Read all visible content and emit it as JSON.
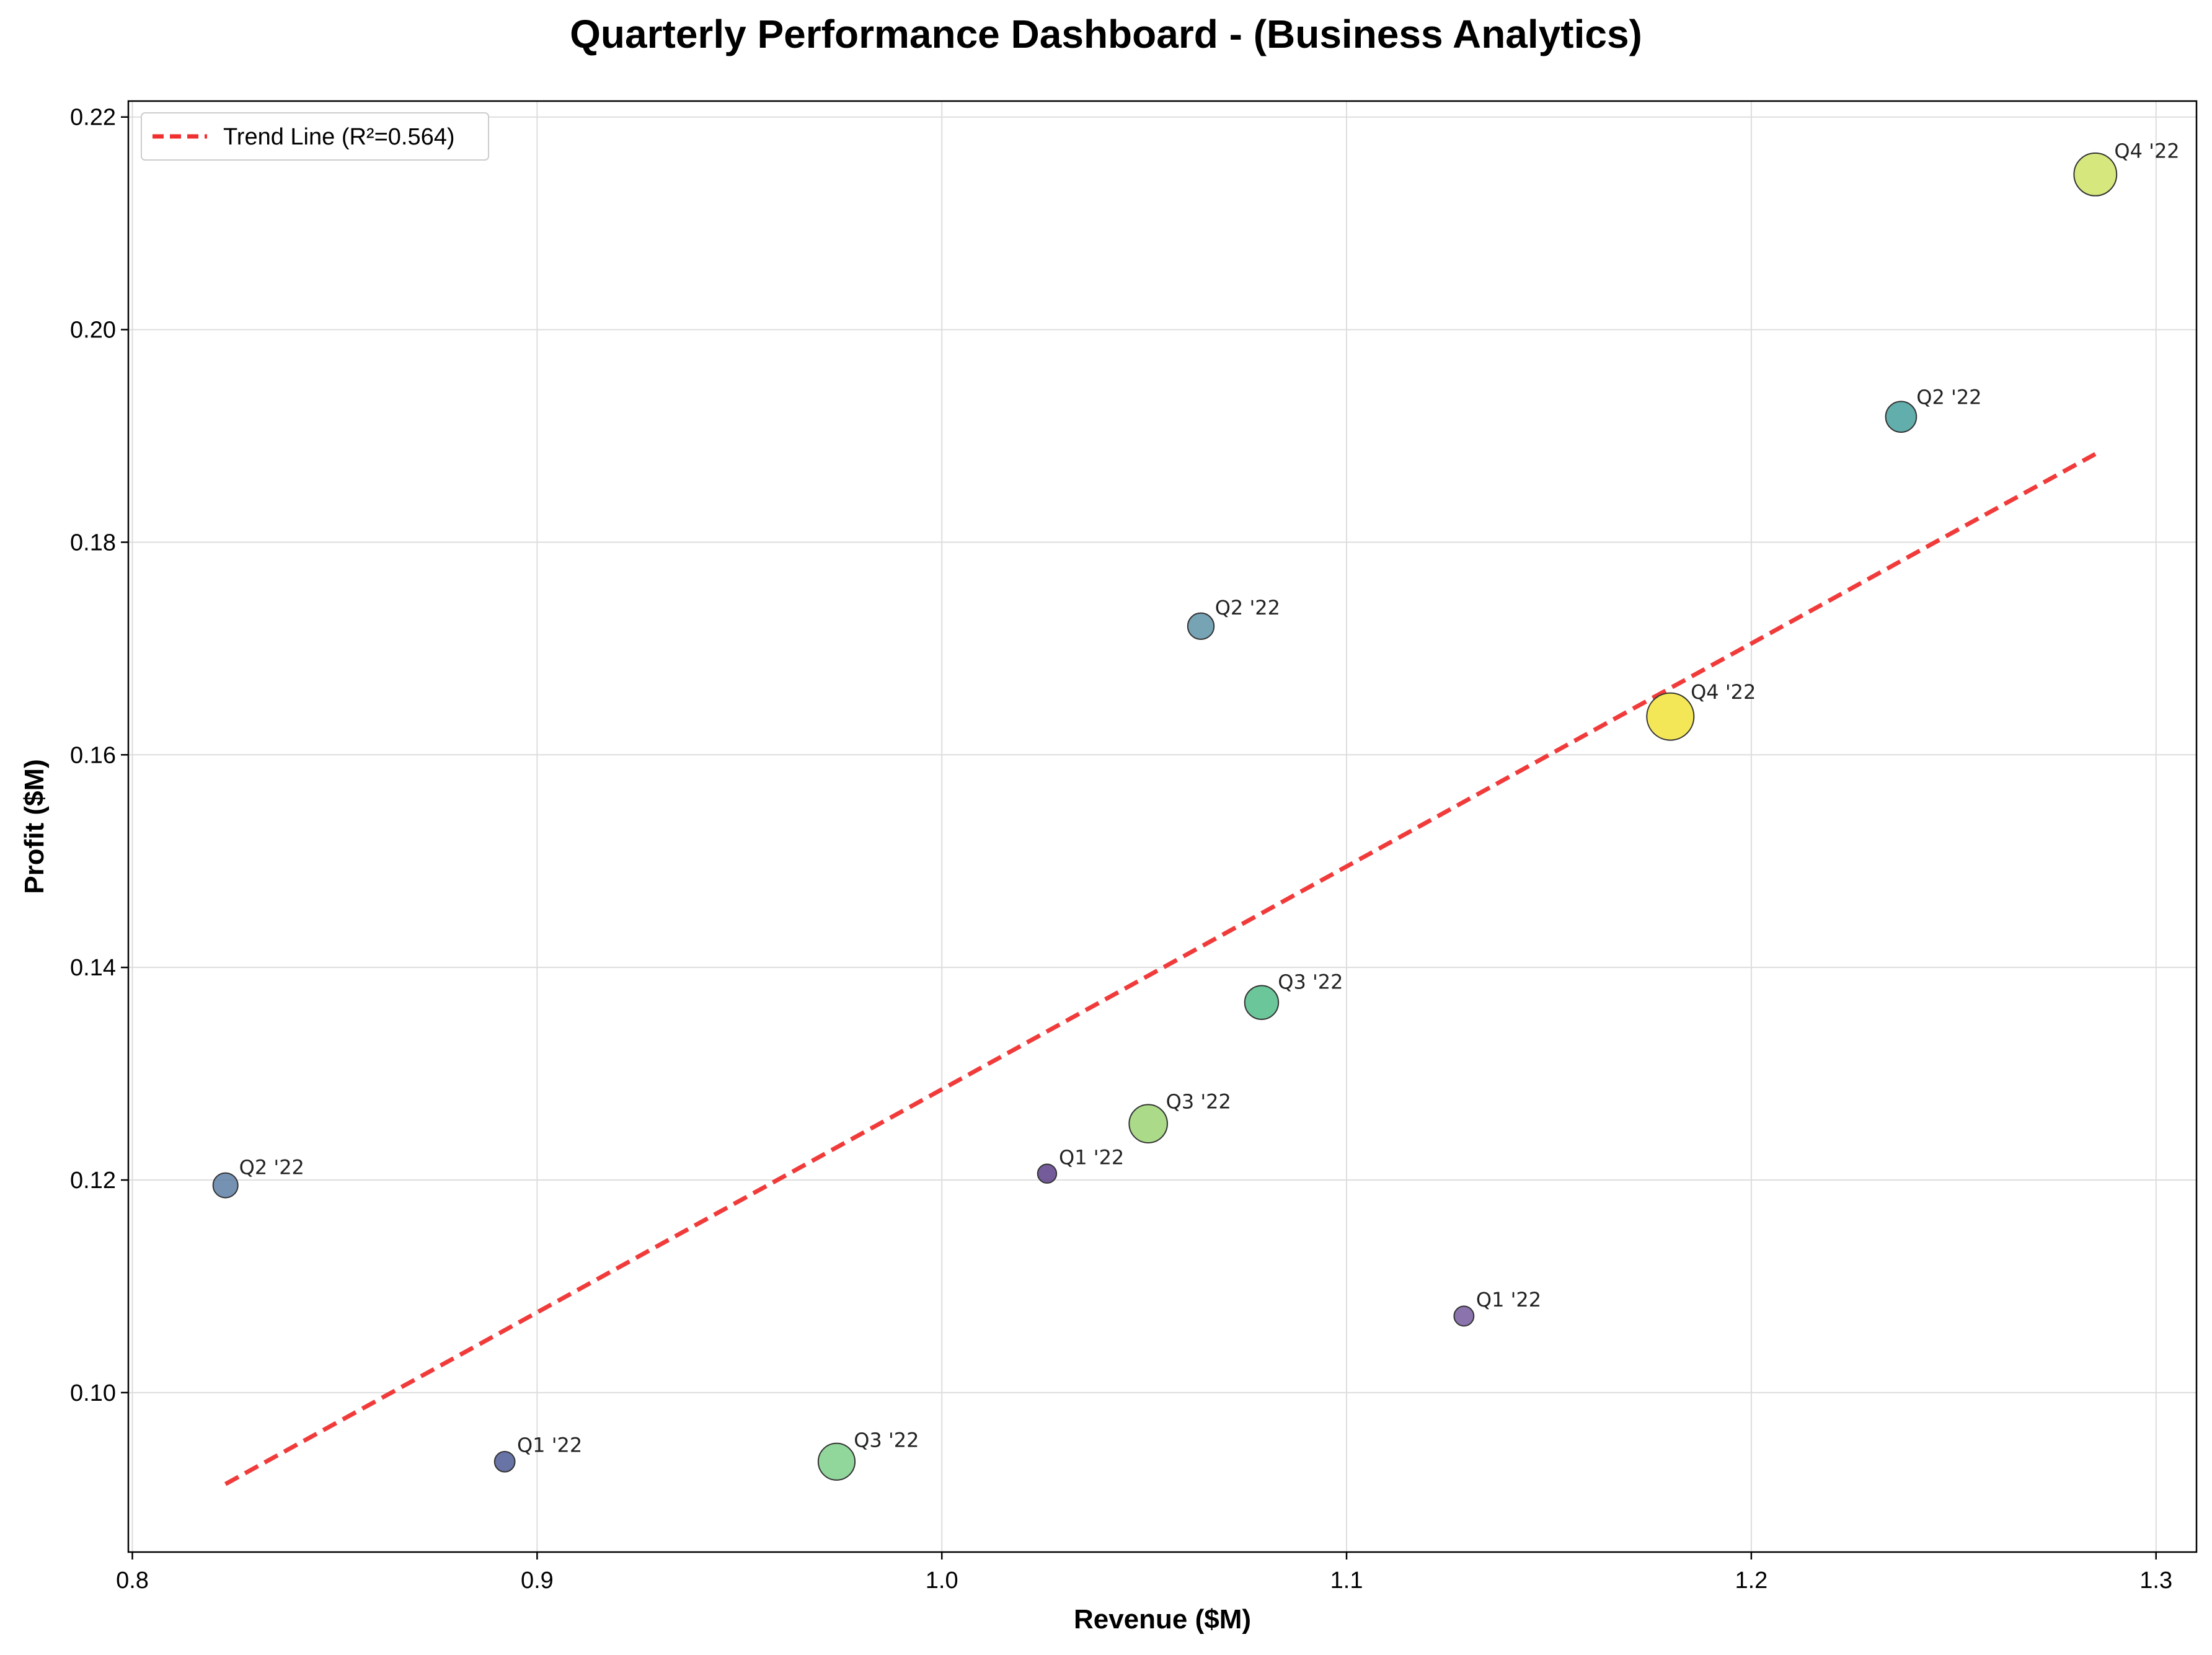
{
  "chart_data": {
    "type": "scatter",
    "title": "Quarterly Performance Dashboard - (Business Analytics)",
    "xlabel": "Revenue ($M)",
    "ylabel": "Profit ($M)",
    "xlim": [
      0.799,
      1.31
    ],
    "ylim": [
      0.085,
      0.2215
    ],
    "xticks": [
      0.8,
      0.9,
      1.0,
      1.1,
      1.2,
      1.3
    ],
    "xtick_labels": [
      "0.8",
      "0.9",
      "1.0",
      "1.1",
      "1.2",
      "1.3"
    ],
    "yticks": [
      0.1,
      0.12,
      0.14,
      0.16,
      0.18,
      0.2,
      0.22
    ],
    "ytick_labels": [
      "0.10",
      "0.12",
      "0.14",
      "0.16",
      "0.18",
      "0.20",
      "0.22"
    ],
    "grid": true,
    "legend_position": "top-left",
    "colormap": "viridis",
    "points": [
      {
        "label": "Q2 '22",
        "x": 0.823,
        "y": 0.1195,
        "size": 0.25,
        "color": "#5e7fa6"
      },
      {
        "label": "Q1 '22",
        "x": 0.892,
        "y": 0.0935,
        "size": 0.1,
        "color": "#4e5a96"
      },
      {
        "label": "Q3 '22",
        "x": 0.974,
        "y": 0.0935,
        "size": 0.65,
        "color": "#7ecf8a"
      },
      {
        "label": "Q1 '22",
        "x": 1.026,
        "y": 0.1206,
        "size": 0.05,
        "color": "#5c3f88"
      },
      {
        "label": "Q3 '22",
        "x": 1.051,
        "y": 0.1253,
        "size": 0.7,
        "color": "#9cd574"
      },
      {
        "label": "Q2 '22",
        "x": 1.064,
        "y": 0.1721,
        "size": 0.3,
        "color": "#5f94a8"
      },
      {
        "label": "Q3 '22",
        "x": 1.079,
        "y": 0.1367,
        "size": 0.55,
        "color": "#51bd88"
      },
      {
        "label": "Q1 '22",
        "x": 1.129,
        "y": 0.1072,
        "size": 0.08,
        "color": "#775ba0"
      },
      {
        "label": "Q4 '22",
        "x": 1.18,
        "y": 0.1636,
        "size": 1.0,
        "color": "#f2e33a"
      },
      {
        "label": "Q2 '22",
        "x": 1.237,
        "y": 0.1918,
        "size": 0.45,
        "color": "#46a09e"
      },
      {
        "label": "Q4 '22",
        "x": 1.285,
        "y": 0.2146,
        "size": 0.85,
        "color": "#cfe366"
      }
    ],
    "trend_line": {
      "label": "Trend Line (R²=0.564)",
      "color": "#f03030",
      "x": [
        0.823,
        1.285
      ],
      "y": [
        0.0914,
        0.1883
      ]
    }
  }
}
